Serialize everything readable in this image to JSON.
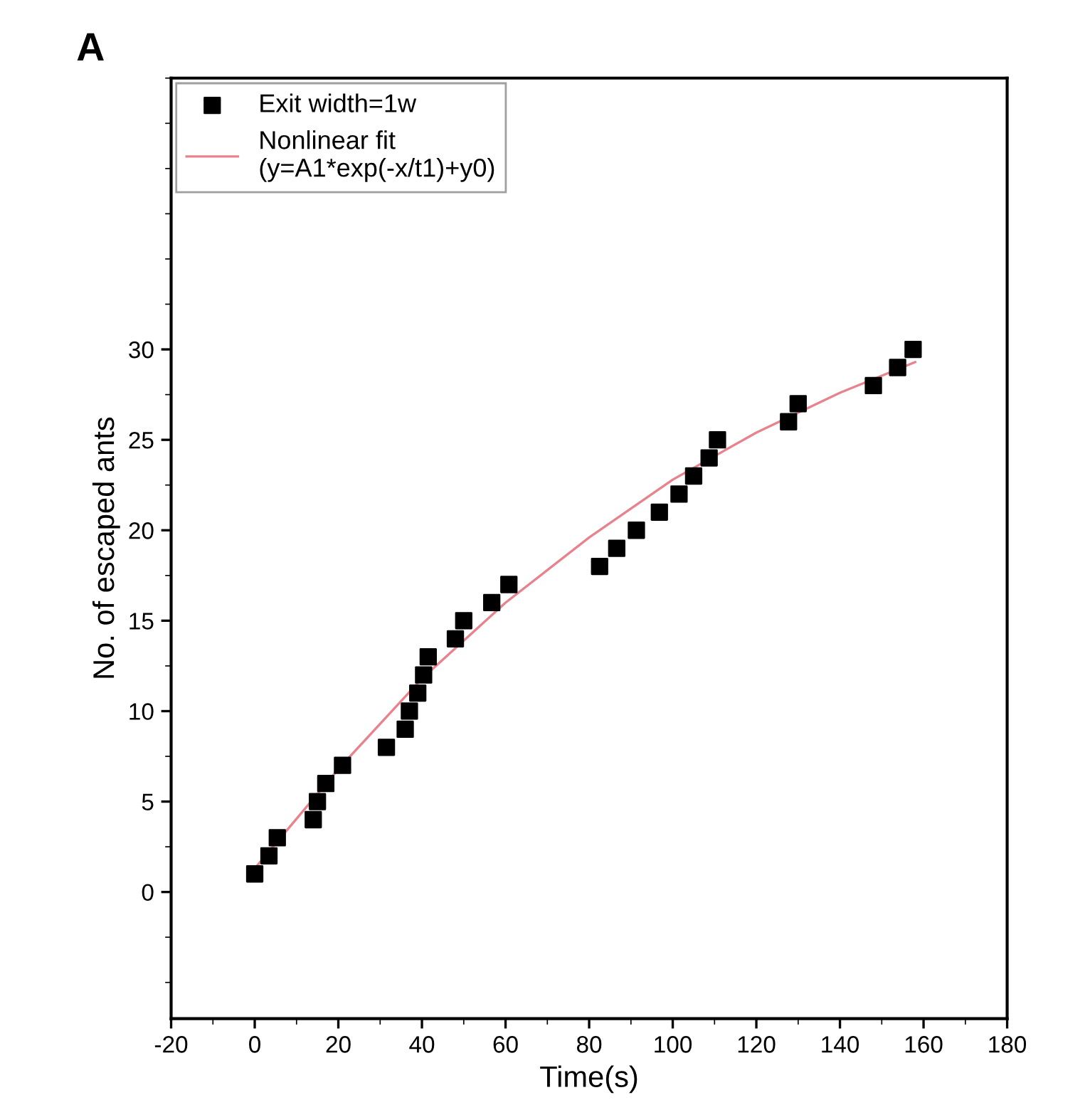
{
  "chart_data": {
    "type": "scatter",
    "annotations": [
      "A"
    ],
    "xlabel": "Time(s)",
    "ylabel": "No. of escaped ants",
    "xlim": [
      -20,
      180
    ],
    "xticks": [
      -20,
      0,
      20,
      40,
      60,
      80,
      100,
      120,
      140,
      160,
      180
    ],
    "ylim": [
      -7,
      45
    ],
    "yticks": [
      0,
      5,
      10,
      15,
      20,
      25,
      30
    ],
    "legend": "top left",
    "grid": false,
    "series": [
      {
        "name": "Exit width=1w",
        "marker": "square",
        "color": "#000000",
        "x": [
          0,
          3.4,
          5.4,
          14,
          15,
          17,
          21,
          31.5,
          36,
          37,
          39,
          40.4,
          41.5,
          48,
          50,
          56.7,
          60.8,
          82.5,
          86.6,
          91.3,
          96.8,
          101.5,
          105,
          108.7,
          110.7,
          127.7,
          130,
          148,
          153.8,
          157.5
        ],
        "values": [
          1,
          2,
          3,
          4,
          5,
          6,
          7,
          8,
          9,
          10,
          11,
          12,
          13,
          14,
          15,
          16,
          17,
          18,
          19,
          20,
          21,
          22,
          23,
          24,
          25,
          26,
          27,
          28,
          29,
          30
        ]
      },
      {
        "name": "Nonlinear fit\n(y=A1*exp(-x/t1)+y0)",
        "type": "line",
        "marker": "none",
        "color": "#e8828c",
        "x": [
          0,
          20,
          40,
          60,
          80,
          100,
          120,
          140,
          158
        ],
        "values": [
          1.3,
          6.8,
          11.8,
          16,
          19.6,
          22.8,
          25.4,
          27.6,
          29.3
        ]
      }
    ]
  }
}
